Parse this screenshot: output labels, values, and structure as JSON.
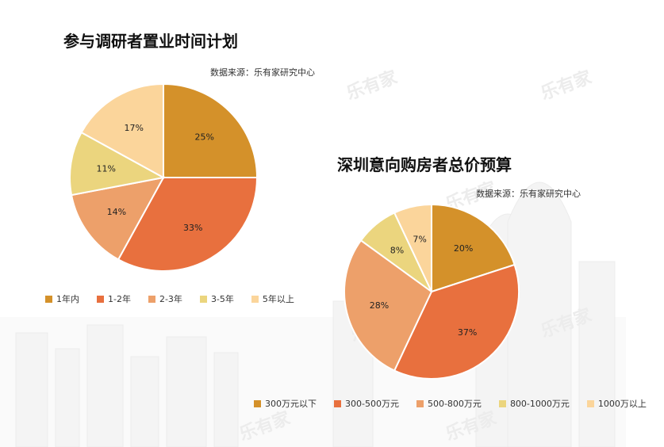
{
  "watermark": "乐有家",
  "chart_data": [
    {
      "type": "pie",
      "title": "参与调研者置业时间计划",
      "source": "数据来源：乐有家研究中心",
      "categories": [
        "1年内",
        "1-2年",
        "2-3年",
        "3-5年",
        "5年以上"
      ],
      "values": [
        25,
        33,
        14,
        11,
        17
      ],
      "labels": [
        "25%",
        "33%",
        "14%",
        "11%",
        "17%"
      ],
      "colors": [
        "#D4912A",
        "#E8703E",
        "#EDA06A",
        "#EBD57E",
        "#FBD59B"
      ],
      "legend_position": "bottom"
    },
    {
      "type": "pie",
      "title": "深圳意向购房者总价预算",
      "source": "数据来源：乐有家研究中心",
      "categories": [
        "300万元以下",
        "300-500万元",
        "500-800万元",
        "800-1000万元",
        "1000万以上"
      ],
      "values": [
        20,
        37,
        28,
        8,
        7
      ],
      "labels": [
        "20%",
        "37%",
        "28%",
        "8%",
        "7%"
      ],
      "colors": [
        "#D4912A",
        "#E8703E",
        "#EDA06A",
        "#EBD57E",
        "#FBD59B"
      ],
      "legend_position": "bottom"
    }
  ]
}
